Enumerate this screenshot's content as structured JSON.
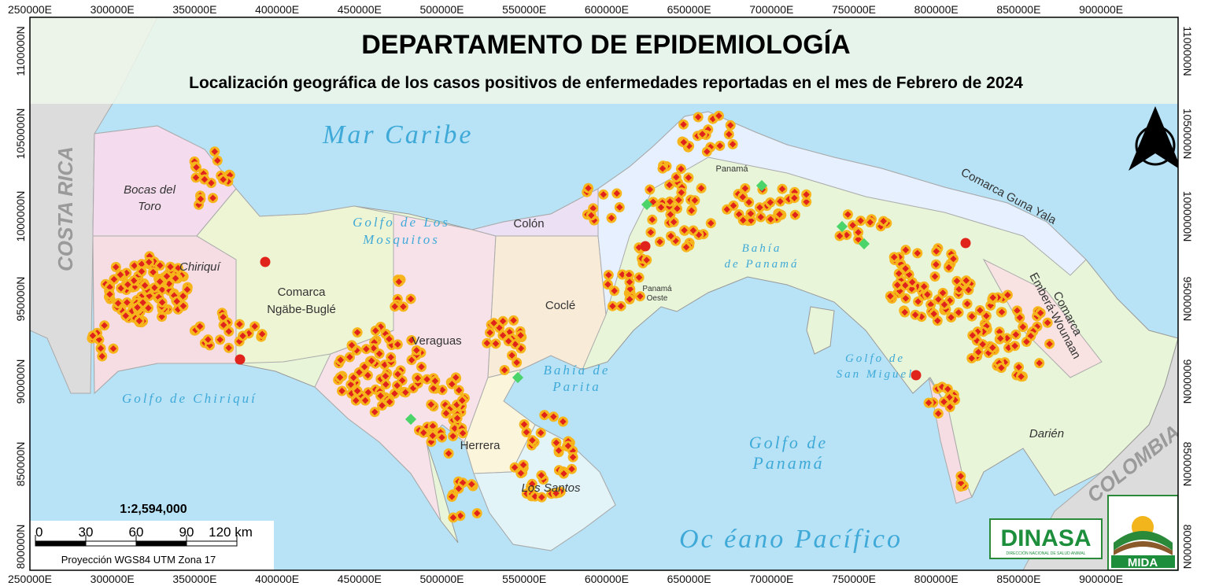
{
  "header": {
    "title": "DEPARTAMENTO DE EPIDEMIOLOGÍA",
    "subtitle": "Localización geográfica de los casos positivos de enfermedades reportadas en el mes de Febrero de 2024"
  },
  "grid": {
    "x_labels": [
      "250000E",
      "300000E",
      "350000E",
      "400000E",
      "450000E",
      "500000E",
      "550000E",
      "600000E",
      "650000E",
      "700000E",
      "750000E",
      "800000E",
      "850000E",
      "900000E"
    ],
    "y_labels": [
      "1100000N",
      "1050000N",
      "1000000N",
      "950000N",
      "900000N",
      "850000N",
      "800000N"
    ]
  },
  "map": {
    "countries": [
      "COSTA RICA",
      "COLOMBIA"
    ],
    "seas": [
      "Mar Caribe",
      "Golfo de Los",
      "Mosquitos",
      "Golfo de Chiriquí",
      "Bahía de",
      "Parita",
      "Bahía",
      "de Panamá",
      "Golfo de",
      "San Miguel",
      "Golfo de",
      "Panamá",
      "Oc éano Pacífico"
    ],
    "provinces": [
      "Bocas del",
      "Toro",
      "Chiriquí",
      "Comarca",
      "Ngäbe-Buglé",
      "Veraguas",
      "Colón",
      "Coclé",
      "Herrera",
      "Los Santos",
      "Panamá",
      "Panamá",
      "Oeste",
      "Comarca Guna Yala",
      "Comarca",
      "Emberá-Wounaan",
      "Darién"
    ]
  },
  "scale": {
    "ratio": "1:2,594,000",
    "ticks": [
      "0",
      "30",
      "60",
      "90",
      "120 km"
    ],
    "projection": "Proyección WGS84 UTM Zona 17"
  },
  "logos": {
    "dinasa": "DINASA",
    "dinasa_subtitle": "DIRECCIÓN NACIONAL DE SALUD ANIMAL",
    "mida": "MIDA"
  }
}
